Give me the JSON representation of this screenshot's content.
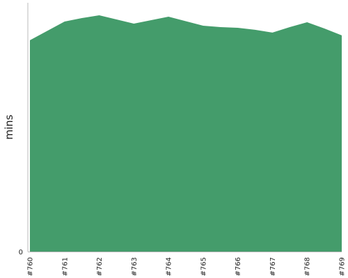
{
  "chart_data": {
    "type": "area",
    "ylabel": "mins",
    "xlabel": "",
    "title": "",
    "x_tick_labels": [
      "#760",
      "#761",
      "#762",
      "#763",
      "#764",
      "#765",
      "#766",
      "#767",
      "#768",
      "#769"
    ],
    "y_tick_labels": [
      "0"
    ],
    "ylim": [
      0,
      343
    ],
    "grid": false,
    "legend": "none",
    "fill_color": "#449c6b",
    "axis_color": "#bbbbbb",
    "points": [
      {
        "x": 0,
        "y": 305
      },
      {
        "x": 1,
        "y": 332
      },
      {
        "x": 1.5,
        "y": 337
      },
      {
        "x": 2,
        "y": 341
      },
      {
        "x": 3,
        "y": 329
      },
      {
        "x": 4,
        "y": 339
      },
      {
        "x": 5,
        "y": 326
      },
      {
        "x": 5.5,
        "y": 324
      },
      {
        "x": 6,
        "y": 323
      },
      {
        "x": 6.5,
        "y": 320
      },
      {
        "x": 7,
        "y": 316
      },
      {
        "x": 7.5,
        "y": 324
      },
      {
        "x": 8,
        "y": 331
      },
      {
        "x": 8.5,
        "y": 322
      },
      {
        "x": 9,
        "y": 312
      }
    ]
  }
}
